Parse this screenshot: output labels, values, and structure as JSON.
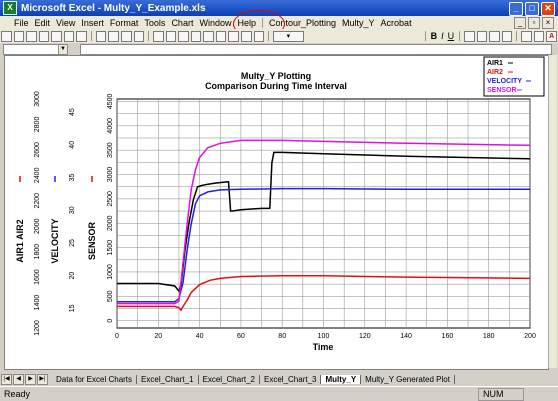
{
  "window": {
    "title": "Microsoft Excel - Multy_Y_Example.xls"
  },
  "menu": {
    "items": [
      "File",
      "Edit",
      "View",
      "Insert",
      "Format",
      "Tools",
      "Chart",
      "Window",
      "Help",
      "Contour_Plotting",
      "Multy_Y",
      "Acrobat"
    ]
  },
  "toolbar": {
    "zoom": "▾",
    "font_bold": "B",
    "font_italic": "I",
    "font_underline": "U"
  },
  "chart": {
    "title": "Multy_Y Plotting",
    "subtitle": "Comparison During Time Interval",
    "xlabel": "Time",
    "axis_labels": {
      "air": "AIR1 AIR2",
      "velocity": "VELOCITY",
      "sensor": "SENSOR"
    },
    "legend": [
      {
        "name": "AIR1",
        "color": "#000000"
      },
      {
        "name": "AIR2",
        "color": "#e01010"
      },
      {
        "name": "VELOCITY",
        "color": "#2020e0"
      },
      {
        "name": "SENSOR",
        "color": "#e010e0"
      }
    ]
  },
  "chart_data": {
    "type": "line",
    "title": "Multy_Y Plotting",
    "subtitle": "Comparison During Time Interval",
    "xlabel": "Time",
    "xlim": [
      0,
      200
    ],
    "xticks": [
      0,
      20,
      40,
      60,
      80,
      100,
      120,
      140,
      160,
      180,
      200
    ],
    "axes": [
      {
        "label": "AIR1 AIR2",
        "ticks": [
          1200,
          1400,
          1600,
          1800,
          2000,
          2200,
          2400,
          2600,
          2800,
          3000
        ],
        "ylim": [
          1200,
          3000
        ]
      },
      {
        "label": "VELOCITY",
        "ticks": [
          15,
          20,
          25,
          30,
          35,
          40,
          45
        ],
        "ylim": [
          12,
          47
        ]
      },
      {
        "label": "SENSOR",
        "ticks": [
          0,
          500,
          1000,
          1500,
          2000,
          2500,
          3000,
          3500,
          4000,
          4500
        ],
        "ylim": [
          -150,
          4550
        ]
      }
    ],
    "series": [
      {
        "name": "AIR1",
        "axis": 0,
        "color": "#000000",
        "x": [
          0,
          20,
          28,
          30,
          31,
          33,
          35,
          37,
          39,
          41,
          44,
          48,
          54,
          55,
          56,
          60,
          70,
          74,
          75,
          76,
          80,
          100,
          140,
          200
        ],
        "y": [
          1550,
          1550,
          1530,
          1490,
          1540,
          1820,
          2040,
          2210,
          2310,
          2320,
          2330,
          2340,
          2350,
          2120,
          2120,
          2130,
          2140,
          2140,
          2500,
          2580,
          2580,
          2570,
          2550,
          2530
        ]
      },
      {
        "name": "AIR2",
        "axis": 0,
        "color": "#e01010",
        "x": [
          0,
          28,
          30,
          31,
          32,
          34,
          36,
          40,
          45,
          50,
          60,
          80,
          100,
          140,
          200
        ],
        "y": [
          1370,
          1370,
          1360,
          1340,
          1370,
          1420,
          1480,
          1540,
          1575,
          1590,
          1605,
          1610,
          1610,
          1600,
          1590
        ]
      },
      {
        "name": "VELOCITY",
        "axis": 1,
        "color": "#2020e0",
        "x": [
          0,
          28,
          30,
          32,
          34,
          36,
          38,
          40,
          44,
          50,
          60,
          80,
          100,
          140,
          200
        ],
        "y": [
          16,
          16,
          16.5,
          19,
          24,
          28,
          31,
          32.2,
          32.8,
          33.1,
          33.2,
          33.3,
          33.3,
          33.2,
          33.2
        ]
      },
      {
        "name": "SENSOR",
        "axis": 2,
        "color": "#e010e0",
        "x": [
          0,
          28,
          30,
          32,
          34,
          36,
          38,
          40,
          44,
          50,
          60,
          80,
          100,
          140,
          200
        ],
        "y": [
          350,
          350,
          400,
          1200,
          2000,
          2700,
          3100,
          3350,
          3550,
          3640,
          3700,
          3700,
          3680,
          3640,
          3600
        ]
      }
    ]
  },
  "sheets": {
    "tabs": [
      "Data for Excel Charts",
      "Excel_Chart_1",
      "Excel_Chart_2",
      "Excel_Chart_3",
      "Multy_Y",
      "Multy_Y Generated Plot"
    ],
    "active": "Multy_Y"
  },
  "status": {
    "left": "Ready",
    "num": "NUM"
  }
}
